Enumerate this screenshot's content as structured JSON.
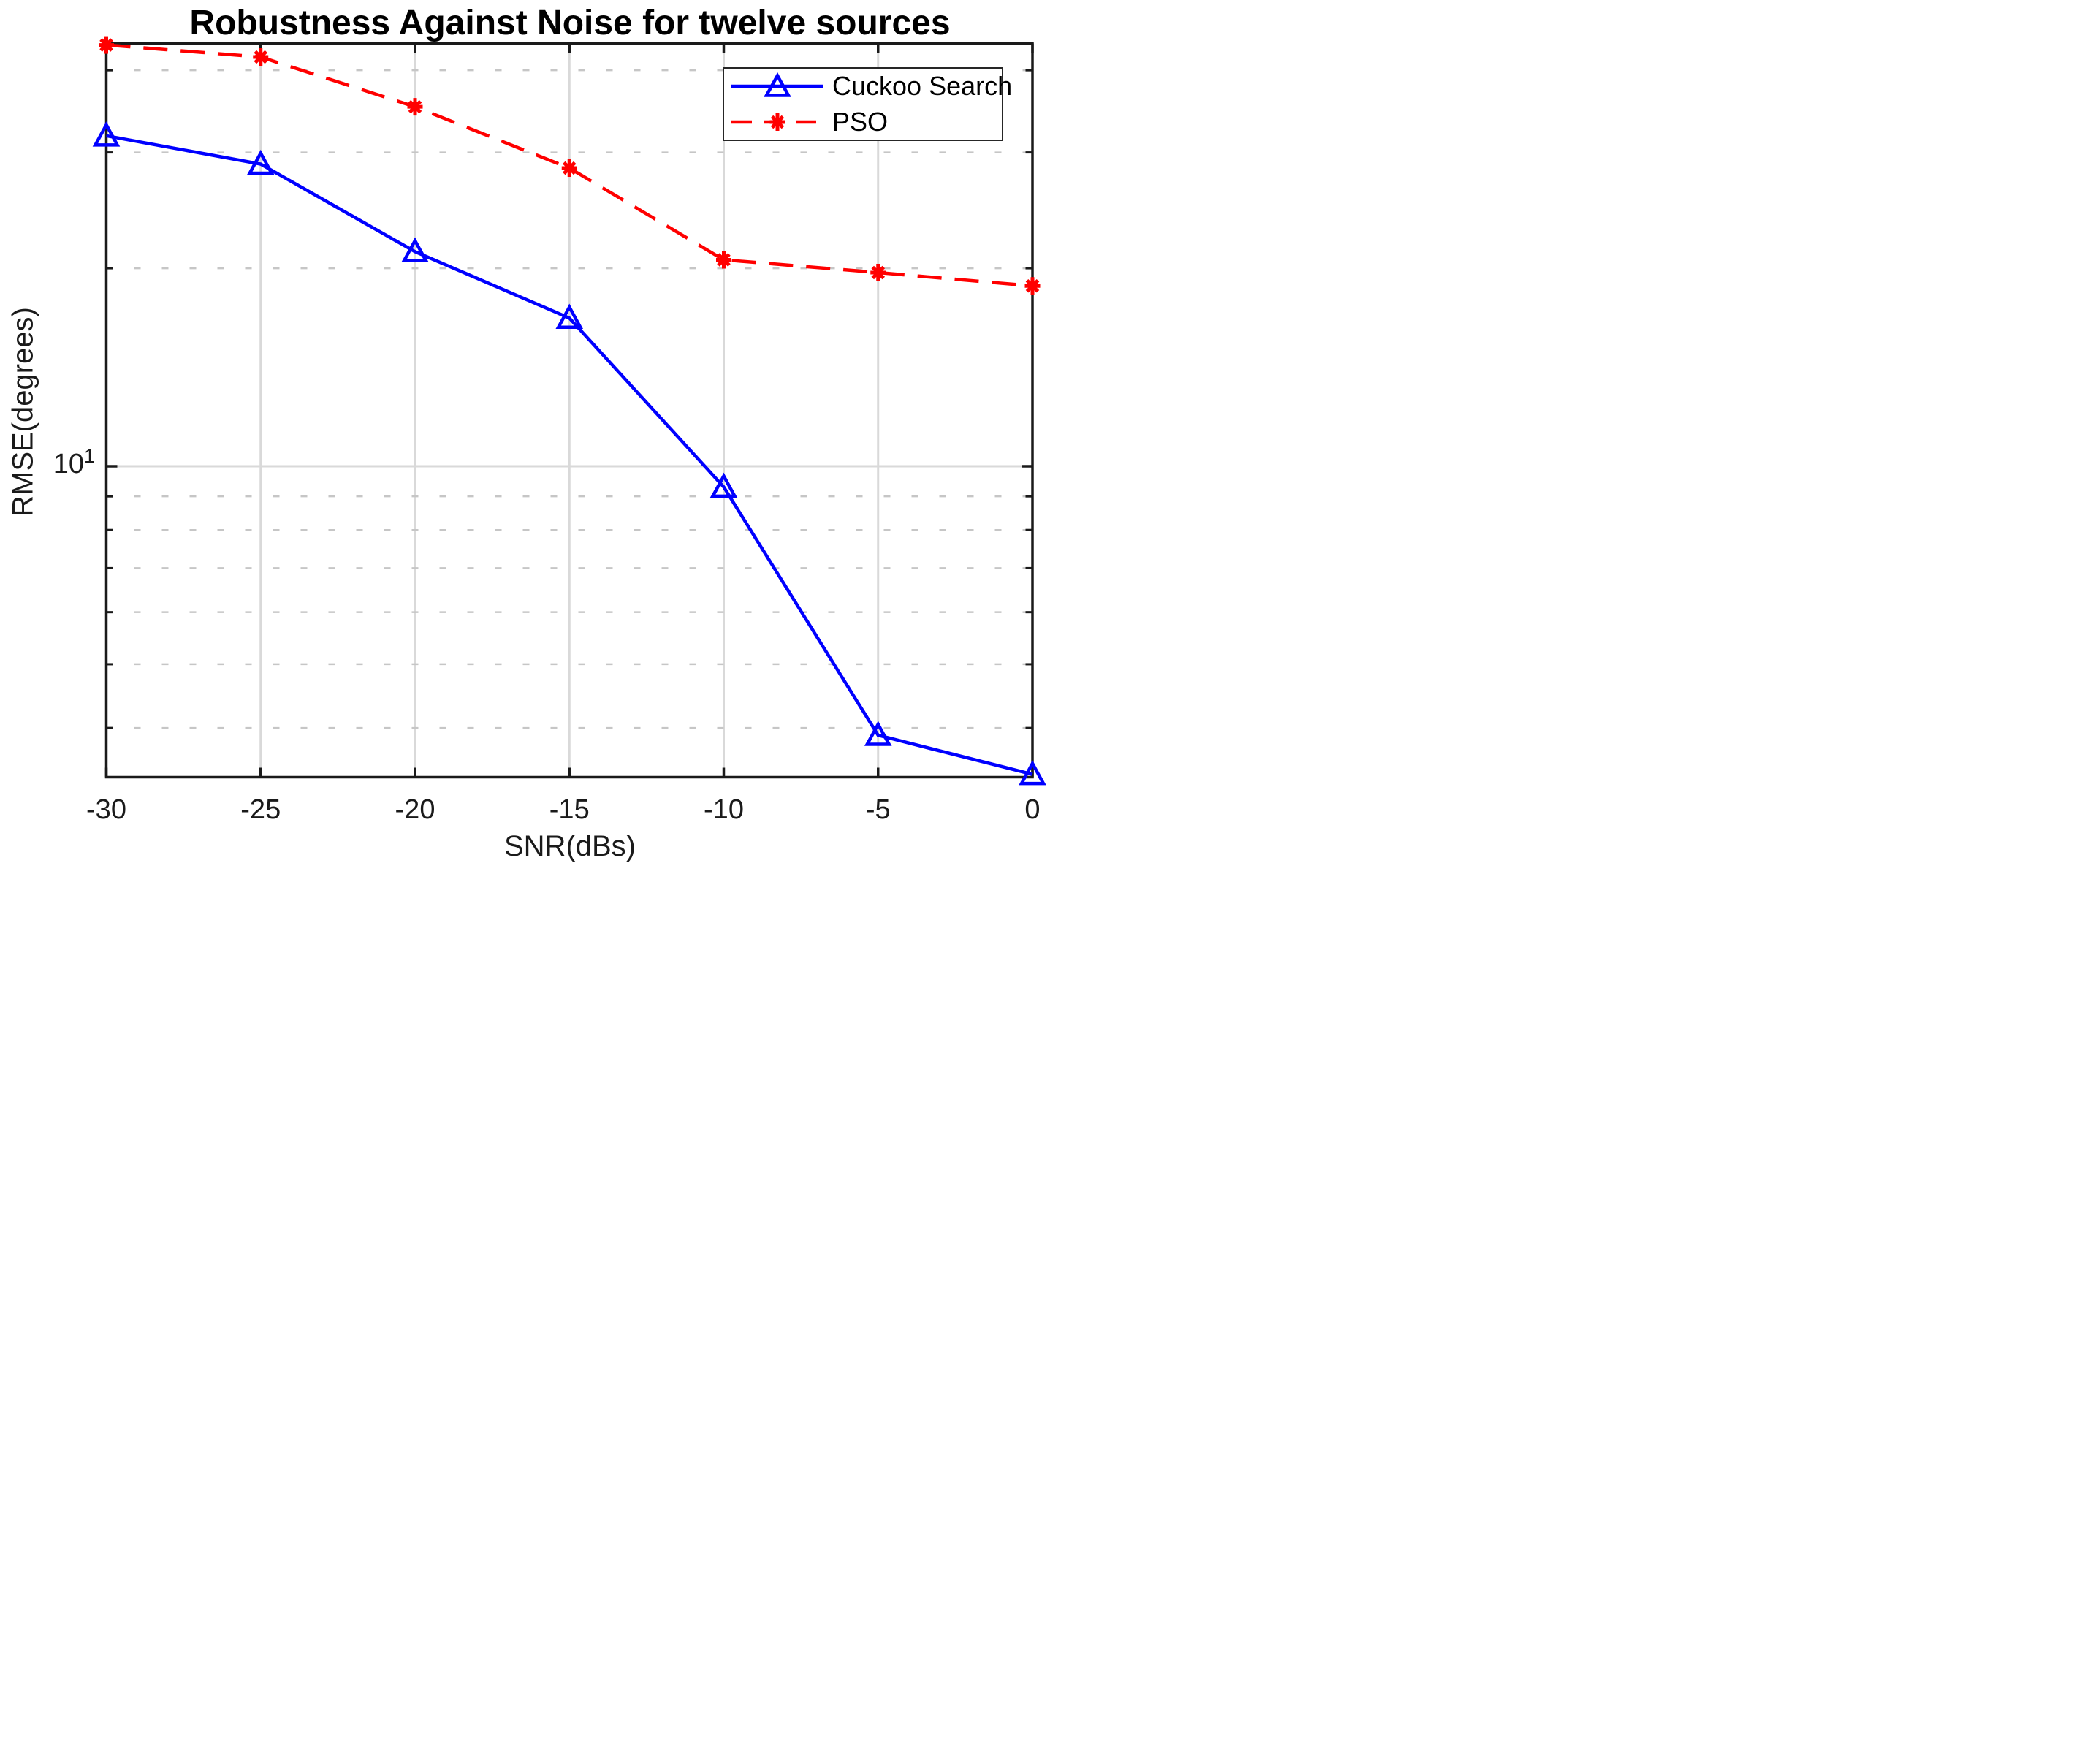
{
  "chart_data": {
    "type": "line",
    "title": "Robustness Against Noise for twelve sources",
    "xlabel": "SNR(dBs)",
    "ylabel": "RMSE(degrees)",
    "x": [
      -30,
      -25,
      -20,
      -15,
      -10,
      -5,
      0
    ],
    "x_tick_labels": [
      "-30",
      "-25",
      "-20",
      "-15",
      "-10",
      "-5",
      "0"
    ],
    "series": [
      {
        "name": "Cuckoo Search",
        "color": "#0000ff",
        "line_style": "solid",
        "marker": "triangle-up",
        "values": [
          31.8,
          28.8,
          21.2,
          16.8,
          9.3,
          3.9,
          3.4
        ]
      },
      {
        "name": "PSO",
        "color": "#ff0000",
        "line_style": "dashed",
        "marker": "asterisk",
        "values": [
          43.7,
          41.9,
          35.2,
          28.4,
          20.6,
          19.7,
          18.8
        ]
      }
    ],
    "y_scale": "log",
    "xlim": [
      -30,
      0
    ],
    "ylim": [
      3.37,
      43.9
    ],
    "y_tick_label": {
      "base": "10",
      "exponent": "1"
    },
    "y_major_gridlines": [
      10
    ],
    "y_minor_gridlines": [
      40,
      30,
      20,
      9,
      8,
      7,
      6,
      5,
      4
    ],
    "grid": true,
    "legend_position": "upper right",
    "colors": {
      "axis": "#1a1a1a",
      "grid_major": "#d9d9d9",
      "grid_minor": "#c6c6c6",
      "text": "#1a1a1a",
      "background": "#ffffff"
    }
  }
}
